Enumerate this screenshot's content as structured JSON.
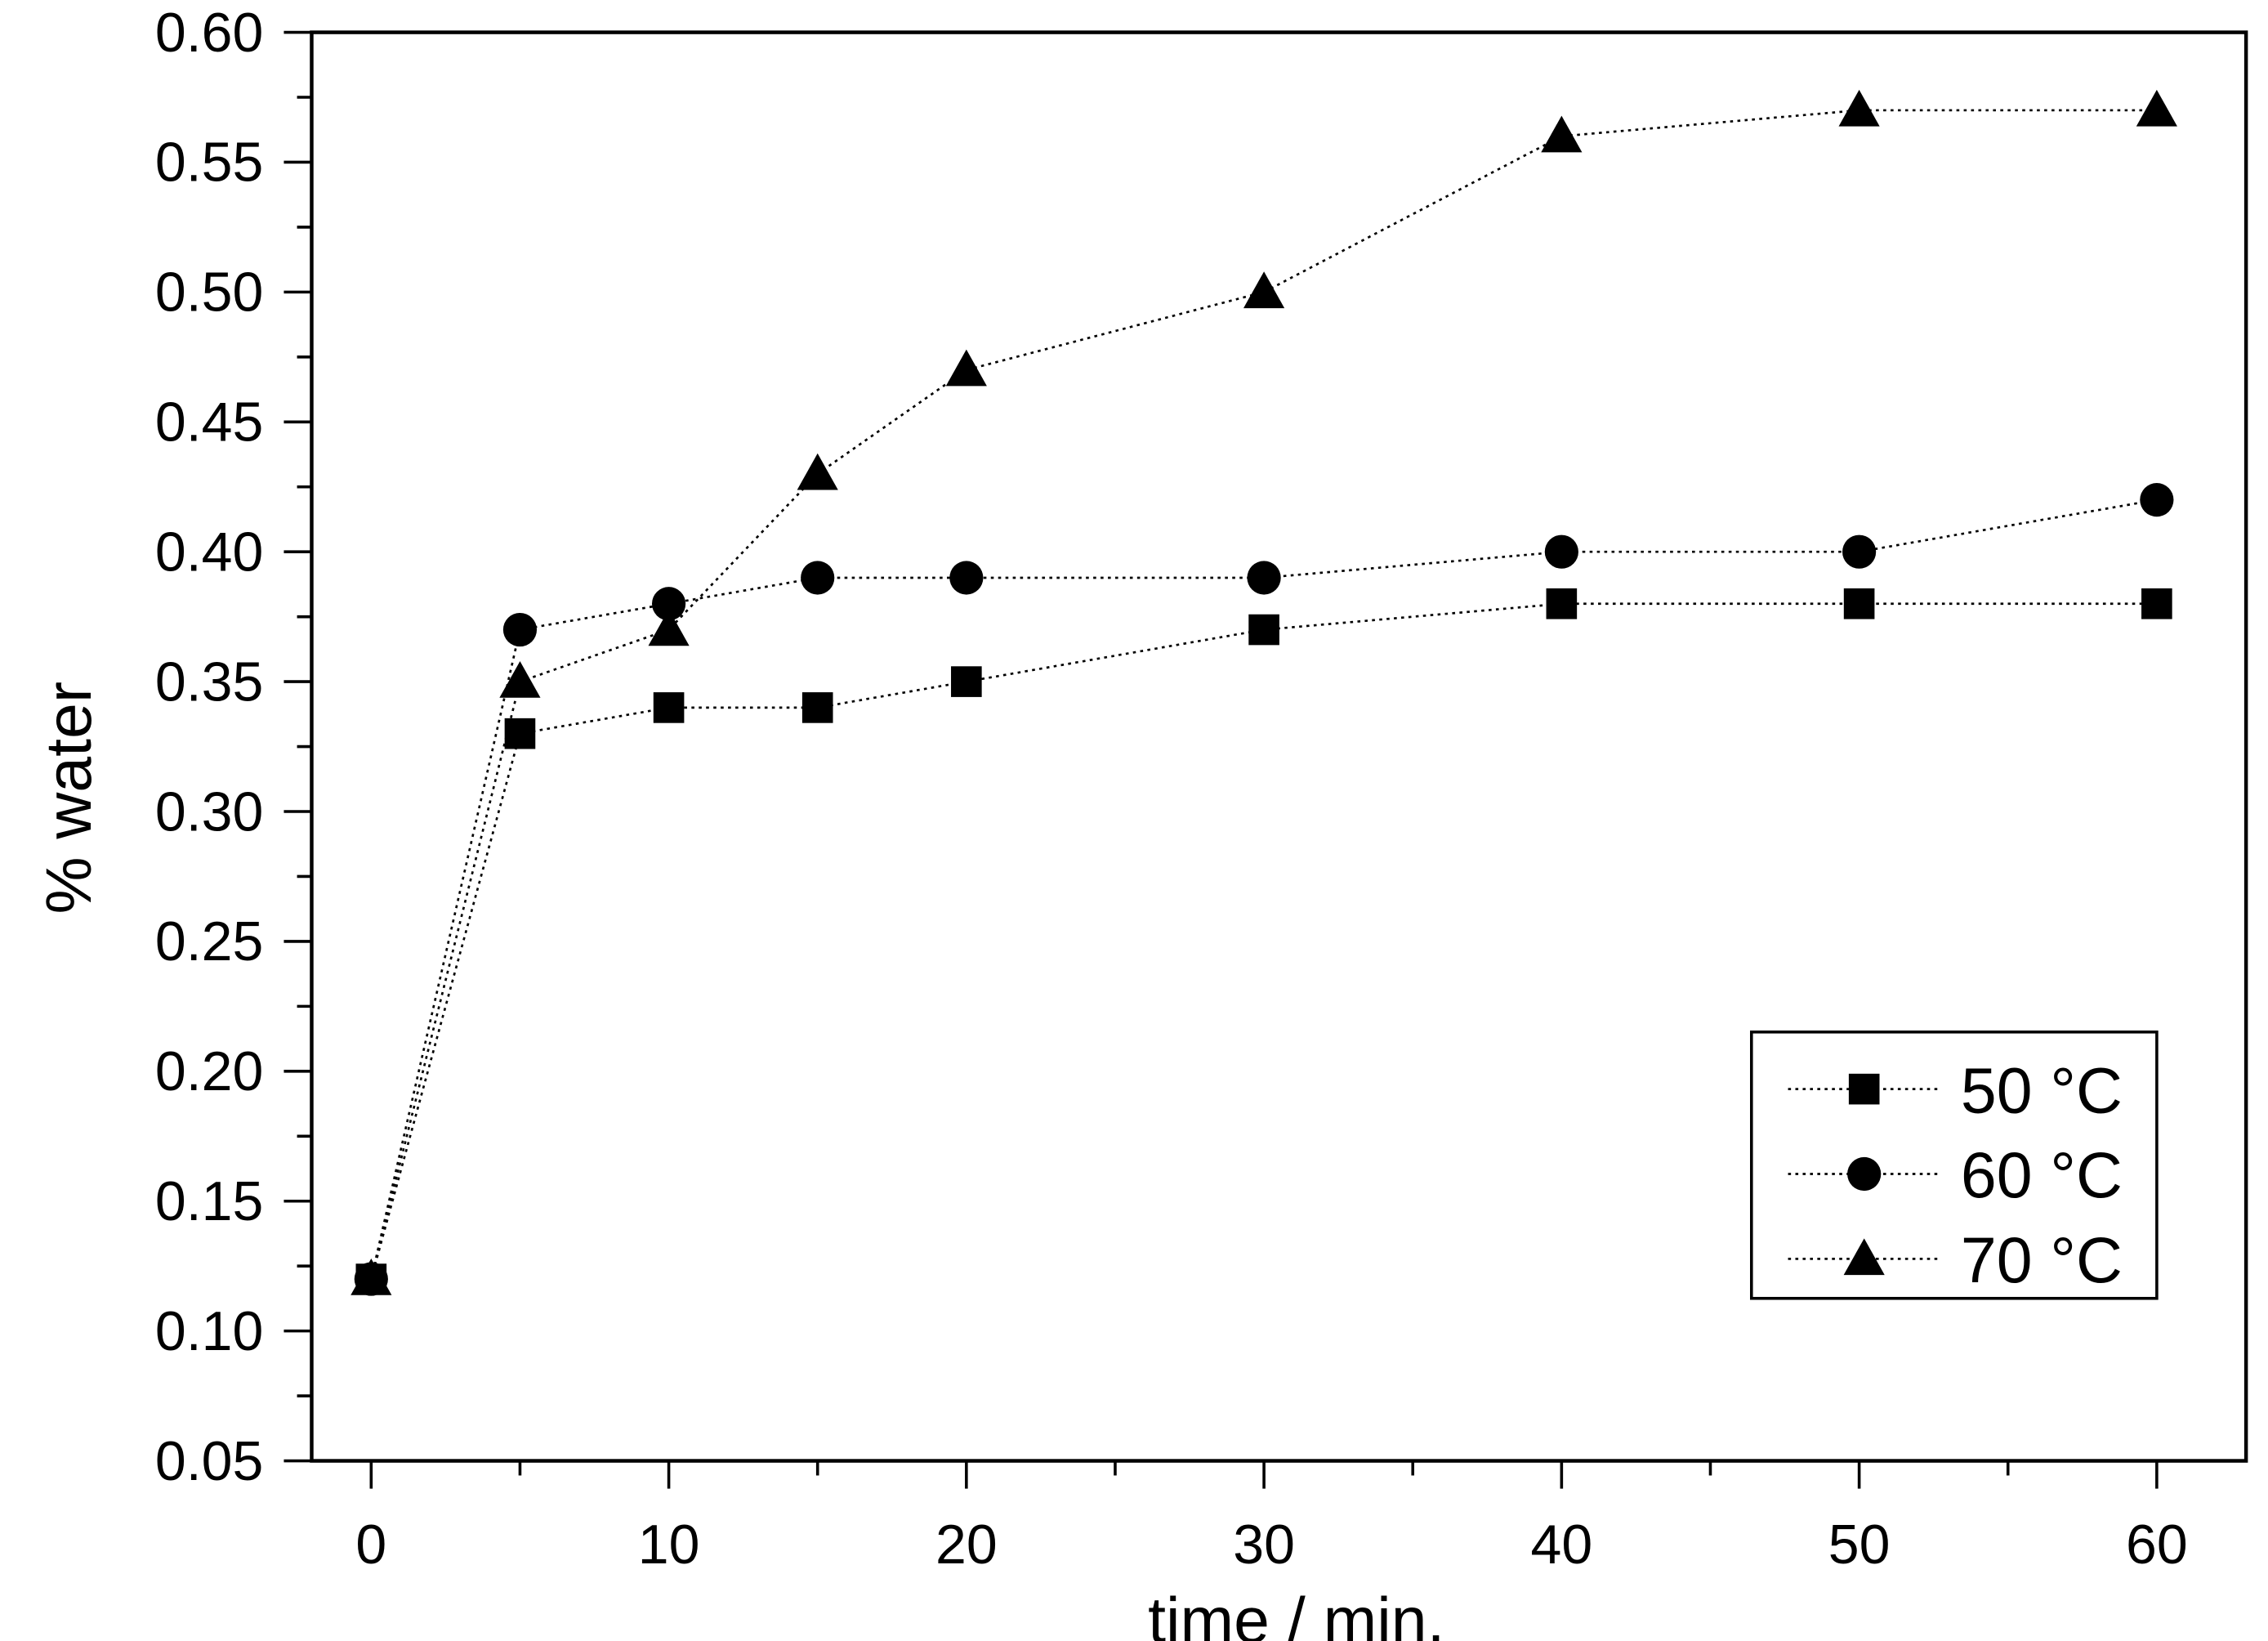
{
  "chart_data": {
    "type": "line",
    "title": "",
    "xlabel": "time / min.",
    "ylabel": "% water",
    "xlim": [
      -2,
      63
    ],
    "ylim": [
      0.05,
      0.6
    ],
    "x_ticks": [
      0,
      10,
      20,
      30,
      40,
      50,
      60
    ],
    "x_tick_labels": [
      "0",
      "10",
      "20",
      "30",
      "40",
      "50",
      "60"
    ],
    "y_ticks": [
      0.05,
      0.1,
      0.15,
      0.2,
      0.25,
      0.3,
      0.35,
      0.4,
      0.45,
      0.5,
      0.55,
      0.6
    ],
    "y_tick_labels": [
      "0.05",
      "0.10",
      "0.15",
      "0.20",
      "0.25",
      "0.30",
      "0.35",
      "0.40",
      "0.45",
      "0.50",
      "0.55",
      "0.60"
    ],
    "grid": false,
    "legend_position": "bottom-right",
    "x": [
      0,
      5,
      10,
      15,
      20,
      30,
      40,
      50,
      60
    ],
    "series": [
      {
        "name": "50 °C",
        "marker": "square",
        "values": [
          0.12,
          0.33,
          0.34,
          0.34,
          0.35,
          0.37,
          0.38,
          0.38,
          0.38
        ]
      },
      {
        "name": "60 °C",
        "marker": "circle",
        "values": [
          0.12,
          0.37,
          0.38,
          0.39,
          0.39,
          0.39,
          0.4,
          0.4,
          0.42
        ]
      },
      {
        "name": "70 °C",
        "marker": "triangle",
        "values": [
          0.12,
          0.35,
          0.37,
          0.43,
          0.47,
          0.5,
          0.56,
          0.57,
          0.57
        ]
      }
    ],
    "color": "#000000"
  }
}
